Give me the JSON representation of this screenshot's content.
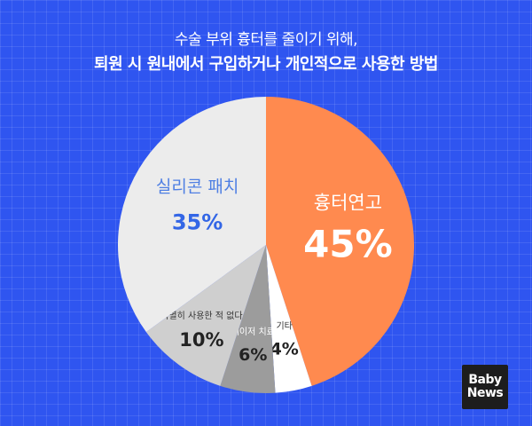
{
  "header": {
    "subtitle": "수술 부위 흉터를 줄이기 위해,",
    "title": "퇴원 시 원내에서 구입하거나 개인적으로 사용한 방법"
  },
  "chart_data": {
    "type": "pie",
    "title": "퇴원 시 원내에서 구입하거나 개인적으로 사용한 방법",
    "subtitle": "수술 부위 흉터를 줄이기 위해,",
    "start_angle_deg": 0,
    "direction": "clockwise",
    "slices": [
      {
        "label": "흉터연고",
        "value": 45,
        "value_label": "45%",
        "color": "#ff8a4f",
        "label_color": "#ffffff",
        "value_color": "#ffffff"
      },
      {
        "label": "기타",
        "value": 4,
        "value_label": "4%",
        "color": "#ffffff",
        "label_color": "#333333",
        "value_color": "#222222"
      },
      {
        "label": "레이저 치료",
        "value": 6,
        "value_label": "6%",
        "color": "#9c9c9c",
        "label_color": "#ffffff",
        "value_color": "#222222"
      },
      {
        "label": "특별히 사용한 적 없다",
        "value": 10,
        "value_label": "10%",
        "color": "#cfcfcf",
        "label_color": "#333333",
        "value_color": "#222222"
      },
      {
        "label": "실리콘 패치",
        "value": 35,
        "value_label": "35%",
        "color": "#ececec",
        "label_color": "#4f7fe3",
        "value_color": "#3366e6"
      }
    ]
  },
  "logo": {
    "line1": "Baby",
    "line2": "News"
  }
}
